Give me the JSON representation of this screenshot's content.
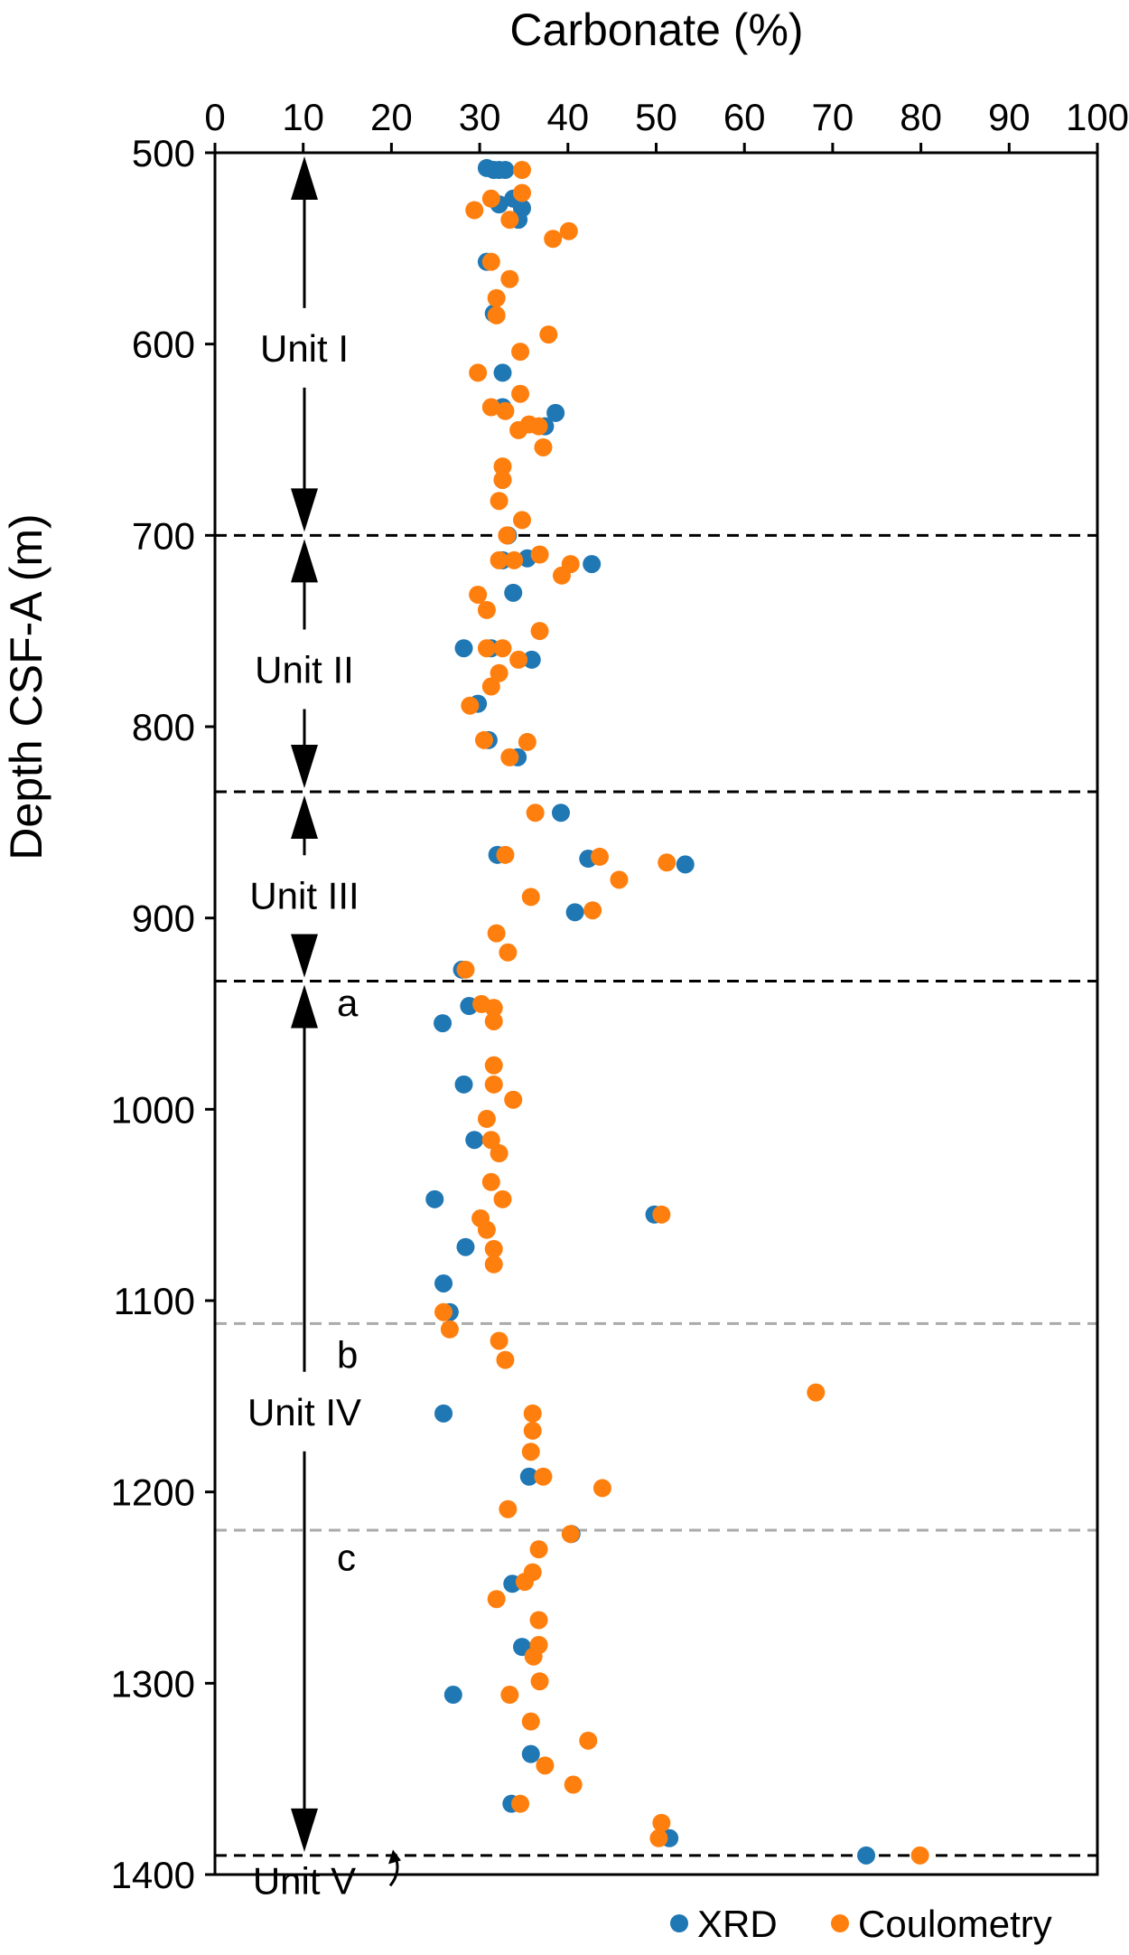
{
  "chart_data": {
    "type": "scatter",
    "orientation": "depth-down",
    "xlabel": "Carbonate (%)",
    "ylabel": "Depth CSF-A (m)",
    "xlim": [
      0,
      100
    ],
    "ylim": [
      500,
      1400
    ],
    "x_ticks": [
      0,
      10,
      20,
      30,
      40,
      50,
      60,
      70,
      80,
      90,
      100
    ],
    "y_ticks": [
      500,
      600,
      700,
      800,
      900,
      1000,
      1100,
      1200,
      1300,
      1400
    ],
    "x_axis_position": "top",
    "y_inverted": true,
    "grid": false,
    "legend_position": "bottom-right",
    "series": [
      {
        "name": "XRD",
        "color": "#1f77b4",
        "points": [
          [
            30.8,
            508
          ],
          [
            31.6,
            509
          ],
          [
            32.2,
            509
          ],
          [
            32.9,
            509
          ],
          [
            33.8,
            524
          ],
          [
            32.2,
            527
          ],
          [
            34.8,
            529
          ],
          [
            34.4,
            535
          ],
          [
            30.8,
            557
          ],
          [
            31.6,
            584
          ],
          [
            32.6,
            615
          ],
          [
            32.6,
            633
          ],
          [
            38.6,
            636
          ],
          [
            37.4,
            643
          ],
          [
            32.6,
            671
          ],
          [
            33.2,
            700
          ],
          [
            32.6,
            713
          ],
          [
            35.4,
            712
          ],
          [
            42.7,
            715
          ],
          [
            33.8,
            730
          ],
          [
            28.2,
            759
          ],
          [
            31.3,
            759
          ],
          [
            35.9,
            765
          ],
          [
            29.8,
            788
          ],
          [
            31.0,
            807
          ],
          [
            34.3,
            816
          ],
          [
            39.2,
            845
          ],
          [
            32.0,
            867
          ],
          [
            42.3,
            869
          ],
          [
            53.3,
            872
          ],
          [
            40.8,
            897
          ],
          [
            28.0,
            927
          ],
          [
            28.8,
            946
          ],
          [
            25.8,
            955
          ],
          [
            28.2,
            987
          ],
          [
            29.4,
            1016
          ],
          [
            24.9,
            1047
          ],
          [
            49.8,
            1055
          ],
          [
            28.4,
            1072
          ],
          [
            25.9,
            1091
          ],
          [
            26.6,
            1106
          ],
          [
            25.9,
            1159
          ],
          [
            35.6,
            1192
          ],
          [
            40.4,
            1222
          ],
          [
            33.7,
            1248
          ],
          [
            34.8,
            1281
          ],
          [
            27.0,
            1306
          ],
          [
            35.8,
            1337
          ],
          [
            33.6,
            1363
          ],
          [
            51.5,
            1381
          ],
          [
            73.8,
            1390
          ]
        ]
      },
      {
        "name": "Coulometry",
        "color": "#ff7f0e",
        "points": [
          [
            34.8,
            509
          ],
          [
            34.8,
            521
          ],
          [
            31.3,
            524
          ],
          [
            29.4,
            530
          ],
          [
            33.4,
            535
          ],
          [
            40.1,
            541
          ],
          [
            38.3,
            545
          ],
          [
            31.3,
            557
          ],
          [
            33.4,
            566
          ],
          [
            31.9,
            576
          ],
          [
            31.9,
            585
          ],
          [
            37.8,
            595
          ],
          [
            34.6,
            604
          ],
          [
            29.8,
            615
          ],
          [
            34.6,
            626
          ],
          [
            31.3,
            633
          ],
          [
            32.9,
            635
          ],
          [
            35.6,
            642
          ],
          [
            36.7,
            643
          ],
          [
            34.4,
            645
          ],
          [
            37.2,
            654
          ],
          [
            32.6,
            664
          ],
          [
            32.6,
            671
          ],
          [
            32.2,
            682
          ],
          [
            34.8,
            692
          ],
          [
            33.1,
            700
          ],
          [
            36.8,
            710
          ],
          [
            32.2,
            713
          ],
          [
            33.9,
            713
          ],
          [
            40.3,
            715
          ],
          [
            39.3,
            721
          ],
          [
            29.8,
            731
          ],
          [
            30.8,
            739
          ],
          [
            36.8,
            750
          ],
          [
            32.6,
            759
          ],
          [
            30.8,
            759
          ],
          [
            34.4,
            765
          ],
          [
            32.2,
            772
          ],
          [
            31.3,
            779
          ],
          [
            28.9,
            789
          ],
          [
            30.5,
            807
          ],
          [
            35.4,
            808
          ],
          [
            33.4,
            816
          ],
          [
            36.3,
            845
          ],
          [
            32.9,
            867
          ],
          [
            43.6,
            868
          ],
          [
            51.2,
            871
          ],
          [
            45.8,
            880
          ],
          [
            35.8,
            889
          ],
          [
            42.8,
            896
          ],
          [
            31.9,
            908
          ],
          [
            33.2,
            918
          ],
          [
            28.4,
            927
          ],
          [
            30.2,
            945
          ],
          [
            31.6,
            947
          ],
          [
            31.6,
            954
          ],
          [
            31.6,
            977
          ],
          [
            31.6,
            987
          ],
          [
            33.8,
            995
          ],
          [
            30.8,
            1005
          ],
          [
            31.3,
            1016
          ],
          [
            32.2,
            1023
          ],
          [
            31.3,
            1038
          ],
          [
            32.6,
            1047
          ],
          [
            50.6,
            1055
          ],
          [
            30.1,
            1057
          ],
          [
            30.8,
            1063
          ],
          [
            31.6,
            1073
          ],
          [
            31.6,
            1081
          ],
          [
            25.9,
            1106
          ],
          [
            26.6,
            1115
          ],
          [
            32.2,
            1121
          ],
          [
            32.9,
            1131
          ],
          [
            68.1,
            1148
          ],
          [
            36.0,
            1159
          ],
          [
            36.0,
            1168
          ],
          [
            35.8,
            1179
          ],
          [
            37.2,
            1192
          ],
          [
            43.9,
            1198
          ],
          [
            33.2,
            1209
          ],
          [
            40.3,
            1222
          ],
          [
            36.7,
            1230
          ],
          [
            36.0,
            1242
          ],
          [
            35.1,
            1247
          ],
          [
            31.9,
            1256
          ],
          [
            36.7,
            1267
          ],
          [
            36.7,
            1280
          ],
          [
            36.1,
            1286
          ],
          [
            36.8,
            1299
          ],
          [
            33.4,
            1306
          ],
          [
            35.8,
            1320
          ],
          [
            42.3,
            1330
          ],
          [
            37.4,
            1343
          ],
          [
            40.6,
            1353
          ],
          [
            34.6,
            1363
          ],
          [
            50.6,
            1373
          ],
          [
            50.3,
            1381
          ],
          [
            79.9,
            1390
          ]
        ]
      }
    ],
    "unit_boundaries": [
      {
        "depth": 700,
        "style": "dashed",
        "color": "#000000"
      },
      {
        "depth": 834,
        "style": "dashed",
        "color": "#000000"
      },
      {
        "depth": 933,
        "style": "dashed",
        "color": "#000000"
      },
      {
        "depth": 1112,
        "style": "dashed",
        "color": "#aaaaaa"
      },
      {
        "depth": 1220,
        "style": "dashed",
        "color": "#aaaaaa"
      },
      {
        "depth": 1390,
        "style": "dashed",
        "color": "#000000"
      }
    ],
    "units": [
      {
        "label": "Unit I",
        "depth": 602,
        "top": 500,
        "bottom": 700
      },
      {
        "label": "Unit II",
        "depth": 770,
        "top": 700,
        "bottom": 834
      },
      {
        "label": "Unit III",
        "depth": 888,
        "top": 834,
        "bottom": 933
      },
      {
        "label": "Unit IV",
        "depth": 1158,
        "top": 933,
        "bottom": 1390
      },
      {
        "label": "Unit V",
        "depth": 1403
      }
    ],
    "subunits": [
      {
        "label": "a",
        "depth": 944
      },
      {
        "label": "b",
        "depth": 1128
      },
      {
        "label": "c",
        "depth": 1234
      }
    ]
  }
}
